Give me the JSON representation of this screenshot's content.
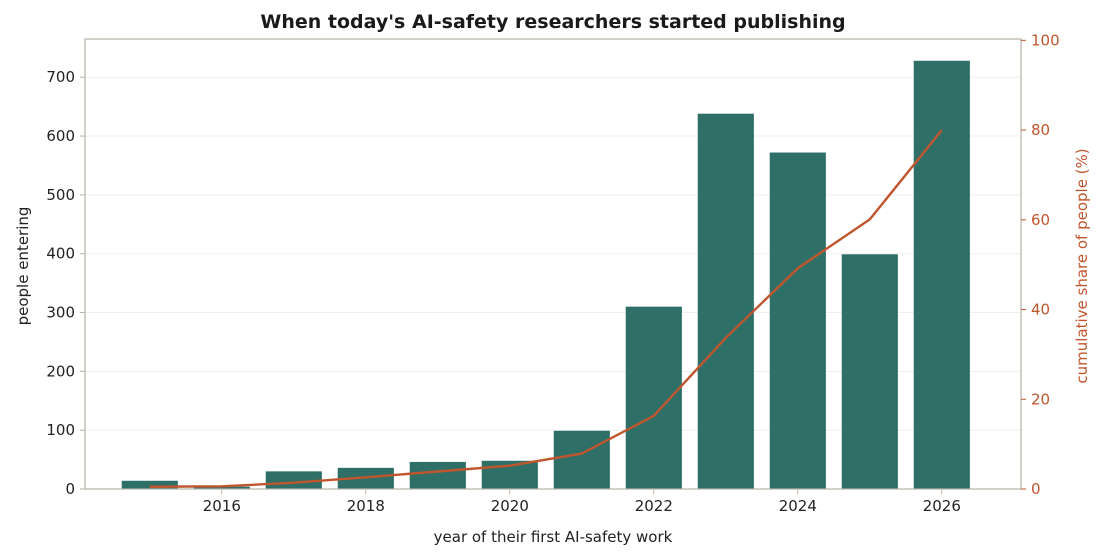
{
  "chart_data": {
    "type": "bar",
    "title": "When today's AI-safety researchers started publishing",
    "xlabel": "year of their first AI-safety work",
    "ylabel": "people entering",
    "y2label": "cumulative share of people (%)",
    "x": [
      2015,
      2016,
      2017,
      2018,
      2019,
      2020,
      2021,
      2022,
      2023,
      2024,
      2025,
      2026
    ],
    "series": [
      {
        "type": "bar",
        "axis": "left",
        "color": "#2e6f68",
        "values": [
          14,
          4,
          30,
          36,
          46,
          48,
          99,
          310,
          638,
          572,
          399,
          728
        ]
      },
      {
        "type": "line",
        "axis": "right",
        "color": "#c0562e",
        "values": [
          0.5,
          0.6,
          1.4,
          2.6,
          3.9,
          5.2,
          7.9,
          16.3,
          33.7,
          49.2,
          60.1,
          80.0
        ]
      }
    ],
    "xlim": [
      2014.1,
      2027.1
    ],
    "ylim": [
      0,
      765
    ],
    "y2lim": [
      0,
      100.3
    ],
    "xticks": [
      "2016",
      "2018",
      "2020",
      "2022",
      "2024",
      "2026"
    ],
    "yticks": [
      "0",
      "100",
      "200",
      "300",
      "400",
      "500",
      "600",
      "700"
    ],
    "y2ticks": [
      "0",
      "20",
      "40",
      "60",
      "80",
      "100"
    ],
    "grid": "horizontal",
    "legend": "none",
    "colors": {
      "bars": "#2e6f68",
      "line": "#c0562e",
      "spine": "#b8b2a8",
      "grid": "#efefef"
    }
  }
}
